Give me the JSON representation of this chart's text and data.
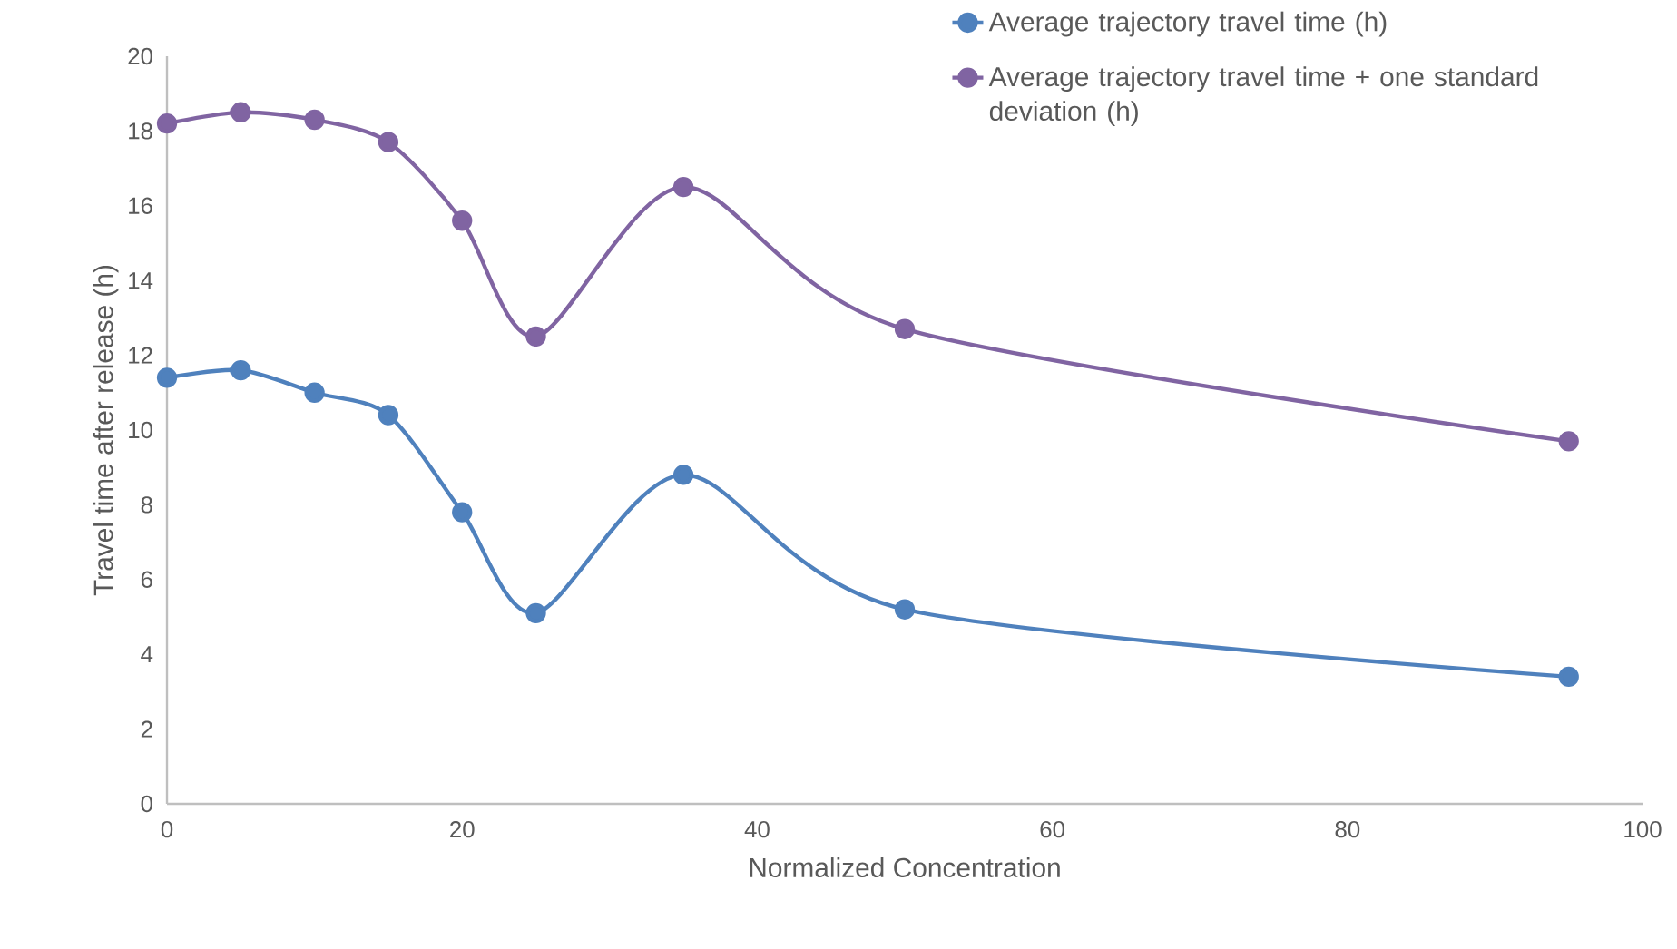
{
  "chart_data": {
    "type": "line",
    "xlabel": "Normalized Concentration",
    "ylabel": "Travel time after release (h)",
    "x": [
      0,
      5,
      10,
      15,
      20,
      25,
      35,
      50,
      95
    ],
    "series": [
      {
        "name": "Average trajectory travel time (h)",
        "color": "#4f81bd",
        "values": [
          11.4,
          11.6,
          11.0,
          10.4,
          7.8,
          5.1,
          8.8,
          5.2,
          3.4
        ]
      },
      {
        "name": "Average trajectory travel time + one standard deviation (h)",
        "color": "#8064a2",
        "values": [
          18.2,
          18.5,
          18.3,
          17.7,
          15.6,
          12.5,
          16.5,
          12.7,
          9.7
        ]
      }
    ],
    "xlim": [
      0,
      100
    ],
    "xticks": [
      0,
      20,
      40,
      60,
      80,
      100
    ],
    "ylim": [
      0,
      20
    ],
    "yticks": [
      0,
      2,
      4,
      6,
      8,
      10,
      12,
      14,
      16,
      18,
      20
    ],
    "grid": false,
    "legend": "top right",
    "marker": "circle",
    "line_style": "solid"
  }
}
